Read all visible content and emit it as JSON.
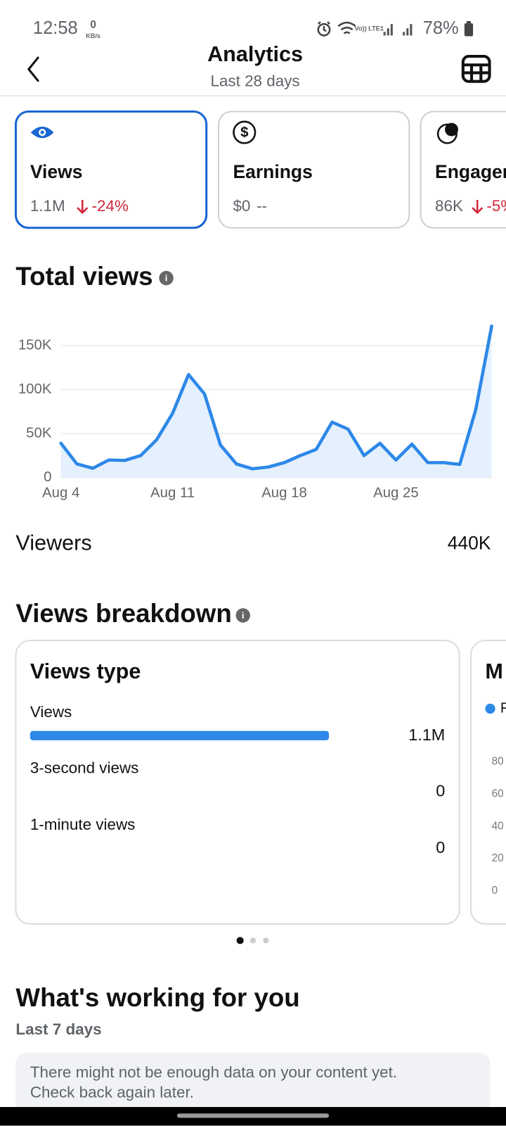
{
  "status_bar": {
    "time": "12:58",
    "net_speed": "0",
    "net_unit": "KB/s",
    "network": "Vo)) LTE1",
    "battery": "78%"
  },
  "header": {
    "title": "Analytics",
    "subtitle": "Last 28 days"
  },
  "metric_cards": [
    {
      "label": "Views",
      "value": "1.1M",
      "change": "-24%"
    },
    {
      "label": "Earnings",
      "value": "$0",
      "change": "--"
    },
    {
      "label": "Engager",
      "value": "86K",
      "change": "-5%"
    }
  ],
  "chart_data": {
    "type": "line",
    "title": "Total views",
    "categories": [
      "Aug 4",
      null,
      null,
      null,
      null,
      null,
      null,
      "Aug 11",
      null,
      null,
      null,
      null,
      null,
      null,
      "Aug 18",
      null,
      null,
      null,
      null,
      null,
      null,
      "Aug 25",
      null,
      null,
      null,
      null,
      null,
      null
    ],
    "values": [
      39000,
      15500,
      10600,
      20000,
      19500,
      25000,
      43000,
      73000,
      117000,
      95000,
      37000,
      15500,
      10000,
      12000,
      17000,
      25000,
      32000,
      63000,
      55000,
      25000,
      39000,
      20000,
      38000,
      17000,
      17000,
      15000,
      77000,
      172000
    ],
    "color": "#2d88e8",
    "fill": "#e4f0fd",
    "ylim": [
      0,
      175000
    ],
    "yticks": [
      0,
      {
        "value": 50000,
        "label": "50K"
      },
      {
        "value": 100000,
        "label": "100K"
      },
      {
        "value": 150000,
        "label": "150K"
      }
    ],
    "grid": true
  },
  "viewers": {
    "label": "Viewers",
    "value": "440K"
  },
  "breakdown": {
    "title": "Views breakdown",
    "views_type": {
      "title": "Views type",
      "rows": [
        {
          "label": "Views",
          "value": "1.1M"
        },
        {
          "label": "3-second views",
          "value": "0"
        },
        {
          "label": "1-minute views",
          "value": "0"
        }
      ]
    },
    "second_card": {
      "title": "M",
      "legend": "F",
      "ticks": [
        "80",
        "60",
        "40",
        "20",
        "0"
      ]
    }
  },
  "working": {
    "title": "What's working for you",
    "subtitle": "Last 7 days",
    "message": [
      "There might not be enough data on your content yet.",
      "Check back again later."
    ]
  }
}
